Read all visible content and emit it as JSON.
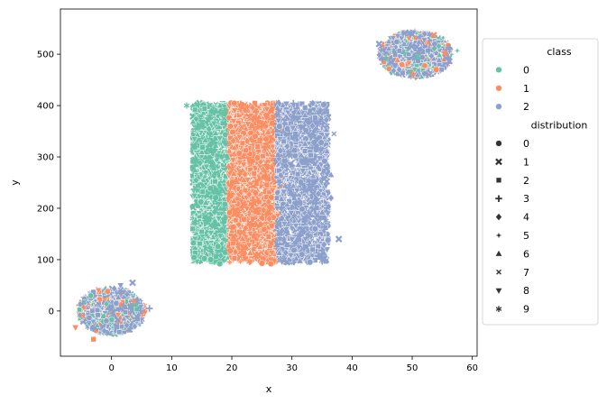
{
  "chart_data": {
    "type": "scatter",
    "xlabel": "x",
    "ylabel": "y",
    "xlim": [
      -8.5,
      60.8
    ],
    "ylim": [
      -88,
      588
    ],
    "xticks": [
      0,
      10,
      20,
      30,
      40,
      50,
      60
    ],
    "yticks": [
      0,
      100,
      200,
      300,
      400,
      500
    ],
    "grid": false,
    "legend": {
      "placement": "right",
      "hue_title": "class",
      "hue_entries": [
        "0",
        "1",
        "2"
      ],
      "style_title": "distribution",
      "style_entries": [
        "0",
        "1",
        "2",
        "3",
        "4",
        "5",
        "6",
        "7",
        "8",
        "9"
      ]
    },
    "class_colors": [
      "#66c2a5",
      "#fc8d62",
      "#8da0cb"
    ],
    "distribution_markers": [
      "circle",
      "x",
      "square",
      "plus",
      "diamond",
      "star4",
      "triangle-up",
      "x-small",
      "triangle-down",
      "star6"
    ],
    "clusters": [
      {
        "name": "bottom-left blob",
        "x_range": [
          -6,
          6
        ],
        "y_range": [
          -50,
          50
        ],
        "classes": [
          0,
          1,
          2
        ]
      },
      {
        "name": "central rectangle",
        "x_range": [
          13,
          37
        ],
        "y_range": [
          92,
          410
        ],
        "class_x_ranges": {
          "0": [
            13,
            20.5
          ],
          "1": [
            19.5,
            28.5
          ],
          "2": [
            27.5,
            37
          ]
        }
      },
      {
        "name": "top-right blob",
        "x_range": [
          44,
          57
        ],
        "y_range": [
          450,
          550
        ],
        "classes": [
          0,
          1,
          2
        ]
      }
    ]
  }
}
